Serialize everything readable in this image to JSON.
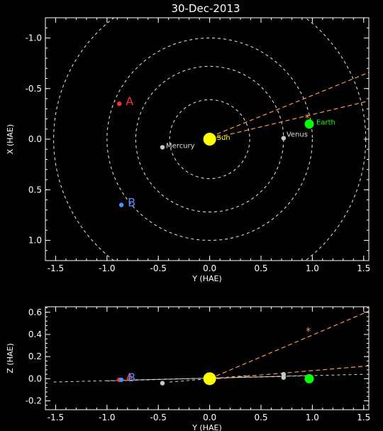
{
  "title": "30-Dec-2013",
  "colors": {
    "background": "#000000",
    "axes": "#ffffff",
    "orbit": "#d8d8d8",
    "sun": "#ffff00",
    "earth": "#00ff00",
    "stereo_a": "#ff3030",
    "stereo_b": "#4a90ff",
    "planet": "#c8c8c8",
    "line": "#ff9a3c"
  },
  "chart_data": [
    {
      "type": "scatter",
      "view": "top",
      "xlabel": "Y (HAE)",
      "ylabel": "X (HAE)",
      "xlim": [
        -1.6,
        1.55
      ],
      "ylim": [
        -1.2,
        1.2
      ],
      "y_inverted": true,
      "xticks": [
        "-1.5",
        "-1.0",
        "-0.5",
        "0.0",
        "0.5",
        "1.0",
        "1.5"
      ],
      "yticks": [
        "-1.0",
        "-0.5",
        "0.0",
        "0.5",
        "1.0"
      ],
      "orbit_radii": [
        0.39,
        0.72,
        1.0,
        1.52
      ],
      "bodies": [
        {
          "name": "Sun",
          "label": "Sun",
          "x": 0.0,
          "y": 0.0,
          "color": "#ffff00",
          "size": "large"
        },
        {
          "name": "Mercury",
          "label": "Mercury",
          "x": -0.46,
          "y": 0.08,
          "color": "#c8c8c8",
          "size": "small"
        },
        {
          "name": "Venus",
          "label": "Venus",
          "x": 0.72,
          "y": -0.01,
          "color": "#c8c8c8",
          "size": "small"
        },
        {
          "name": "Earth",
          "label": "Earth",
          "x": 0.97,
          "y": -0.15,
          "color": "#00ff00",
          "size": "medium"
        },
        {
          "name": "STEREO-A",
          "label": "A",
          "x": -0.88,
          "y": -0.35,
          "color": "#ff3030",
          "size": "small"
        },
        {
          "name": "STEREO-B",
          "label": "B",
          "x": -0.86,
          "y": 0.65,
          "color": "#4a90ff",
          "size": "small"
        }
      ],
      "marker": {
        "symbol": "*",
        "x": 0.95,
        "y": -0.21,
        "color": "#ff9a3c"
      },
      "dashed_lines": [
        {
          "x": [
            0.0,
            1.6
          ],
          "y": [
            0.0,
            -0.39
          ],
          "color": "#ff9a3c"
        },
        {
          "x": [
            0.07,
            1.6
          ],
          "y": [
            -0.05,
            -0.68
          ],
          "color": "#ff9a3c"
        }
      ]
    },
    {
      "type": "scatter",
      "view": "side",
      "xlabel": "Y (HAE)",
      "ylabel": "Z (HAE)",
      "xlim": [
        -1.6,
        1.55
      ],
      "ylim": [
        -0.28,
        0.65
      ],
      "xticks": [
        "-1.5",
        "-1.0",
        "-0.5",
        "0.0",
        "0.5",
        "1.0",
        "1.5"
      ],
      "yticks": [
        "-0.2",
        "0.0",
        "0.2",
        "0.4",
        "0.6"
      ],
      "bodies": [
        {
          "name": "Sun",
          "label": "",
          "x": 0.0,
          "y": 0.0,
          "color": "#ffff00",
          "size": "large"
        },
        {
          "name": "Mercury",
          "label": "",
          "x": -0.46,
          "y": -0.04,
          "color": "#c8c8c8",
          "size": "small"
        },
        {
          "name": "Venus",
          "label": "",
          "x": 0.72,
          "y": 0.04,
          "color": "#c8c8c8",
          "size": "small"
        },
        {
          "name": "Venus-2",
          "label": "",
          "x": 0.72,
          "y": 0.01,
          "color": "#c8c8c8",
          "size": "small"
        },
        {
          "name": "Earth",
          "label": "",
          "x": 0.97,
          "y": 0.0,
          "color": "#00ff00",
          "size": "medium"
        },
        {
          "name": "STEREO-A",
          "label": "A",
          "x": -0.88,
          "y": -0.01,
          "color": "#ff3030",
          "size": "small"
        },
        {
          "name": "STEREO-B",
          "label": "B",
          "x": -0.86,
          "y": -0.01,
          "color": "#4a90ff",
          "size": "small"
        }
      ],
      "marker": {
        "symbol": "*",
        "x": 0.96,
        "y": 0.43,
        "color": "#ff9a3c"
      },
      "orbit_lines": [
        {
          "x": [
            -1.52,
            1.52
          ],
          "y": [
            -0.03,
            0.04
          ]
        },
        {
          "x": [
            -1.0,
            1.0
          ],
          "y": [
            -0.02,
            0.03
          ]
        },
        {
          "x": [
            -0.72,
            0.72
          ],
          "y": [
            -0.01,
            0.02
          ]
        },
        {
          "x": [
            -0.39,
            0.39
          ],
          "y": [
            -0.03,
            0.03
          ]
        }
      ],
      "dashed_lines": [
        {
          "x": [
            0.0,
            1.6
          ],
          "y": [
            0.0,
            0.63
          ],
          "color": "#ff9a3c"
        },
        {
          "x": [
            0.07,
            1.6
          ],
          "y": [
            0.0,
            0.12
          ],
          "color": "#ff9a3c"
        }
      ]
    }
  ]
}
